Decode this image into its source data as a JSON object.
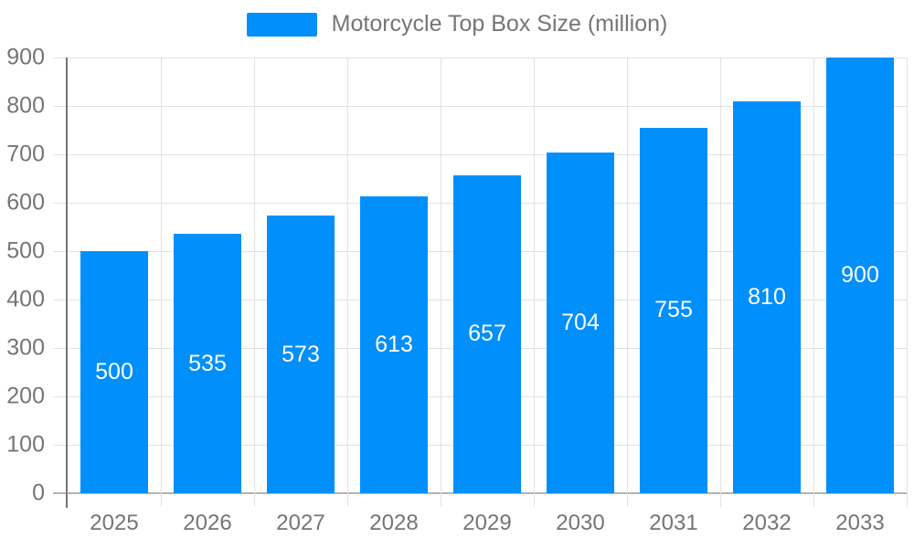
{
  "chart_data": {
    "type": "bar",
    "title": "Motorcycle Top Box Size (million)",
    "categories": [
      "2025",
      "2026",
      "2027",
      "2028",
      "2029",
      "2030",
      "2031",
      "2032",
      "2033"
    ],
    "values": [
      500,
      535,
      573,
      613,
      657,
      704,
      755,
      810,
      900
    ],
    "xlabel": "",
    "ylabel": "",
    "ylim": [
      0,
      900
    ],
    "yticks": [
      0,
      100,
      200,
      300,
      400,
      500,
      600,
      700,
      800,
      900
    ],
    "grid": true,
    "legend_position": "top",
    "colors": {
      "bar": "#008FFB",
      "bar_label": "#FFFFFF",
      "axis_text": "#757575",
      "legend_text": "#757575",
      "gridline": "#E2E2E2",
      "axis_line": "#737476",
      "baseline": "#B3B3B3"
    }
  }
}
